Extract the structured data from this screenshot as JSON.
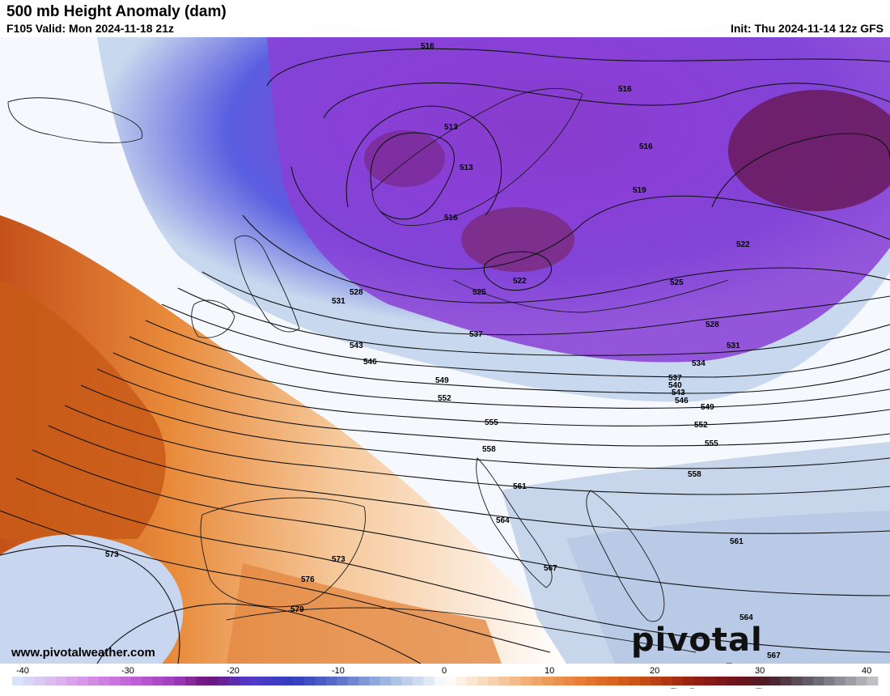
{
  "header": {
    "title": "500 mb Height Anomaly (dam)",
    "valid": "F105 Valid: Mon 2024-11-18 21z",
    "init": "Init: Thu 2024-11-14 12z GFS"
  },
  "watermark": {
    "website": "www.pivotalweather.com",
    "logo": "pivotal weather"
  },
  "contour_labels": [
    "516",
    "516",
    "513",
    "513",
    "516",
    "519",
    "522",
    "525",
    "522",
    "528",
    "531",
    "537",
    "534",
    "543",
    "546",
    "549",
    "552",
    "555",
    "558",
    "561",
    "564",
    "567",
    "573",
    "576",
    "579",
    "528",
    "525",
    "531",
    "537",
    "540",
    "543",
    "546",
    "549",
    "552",
    "555",
    "558",
    "561",
    "564",
    "567",
    "573",
    "516",
    "522"
  ],
  "colorbar": {
    "tick_labels": [
      "-40",
      "-30",
      "-20",
      "-10",
      "0",
      "10",
      "20",
      "30",
      "40"
    ]
  },
  "colors": {
    "deep_purple": "#6a1a8a",
    "purple": "#8a3fd6",
    "blue": "#3550c8",
    "light_blue": "#c8d8ee",
    "white": "#ffffff",
    "light_orange": "#f6d2b0",
    "orange": "#e88a3a",
    "dark_orange": "#c85a18",
    "maroon": "#5a1030"
  }
}
